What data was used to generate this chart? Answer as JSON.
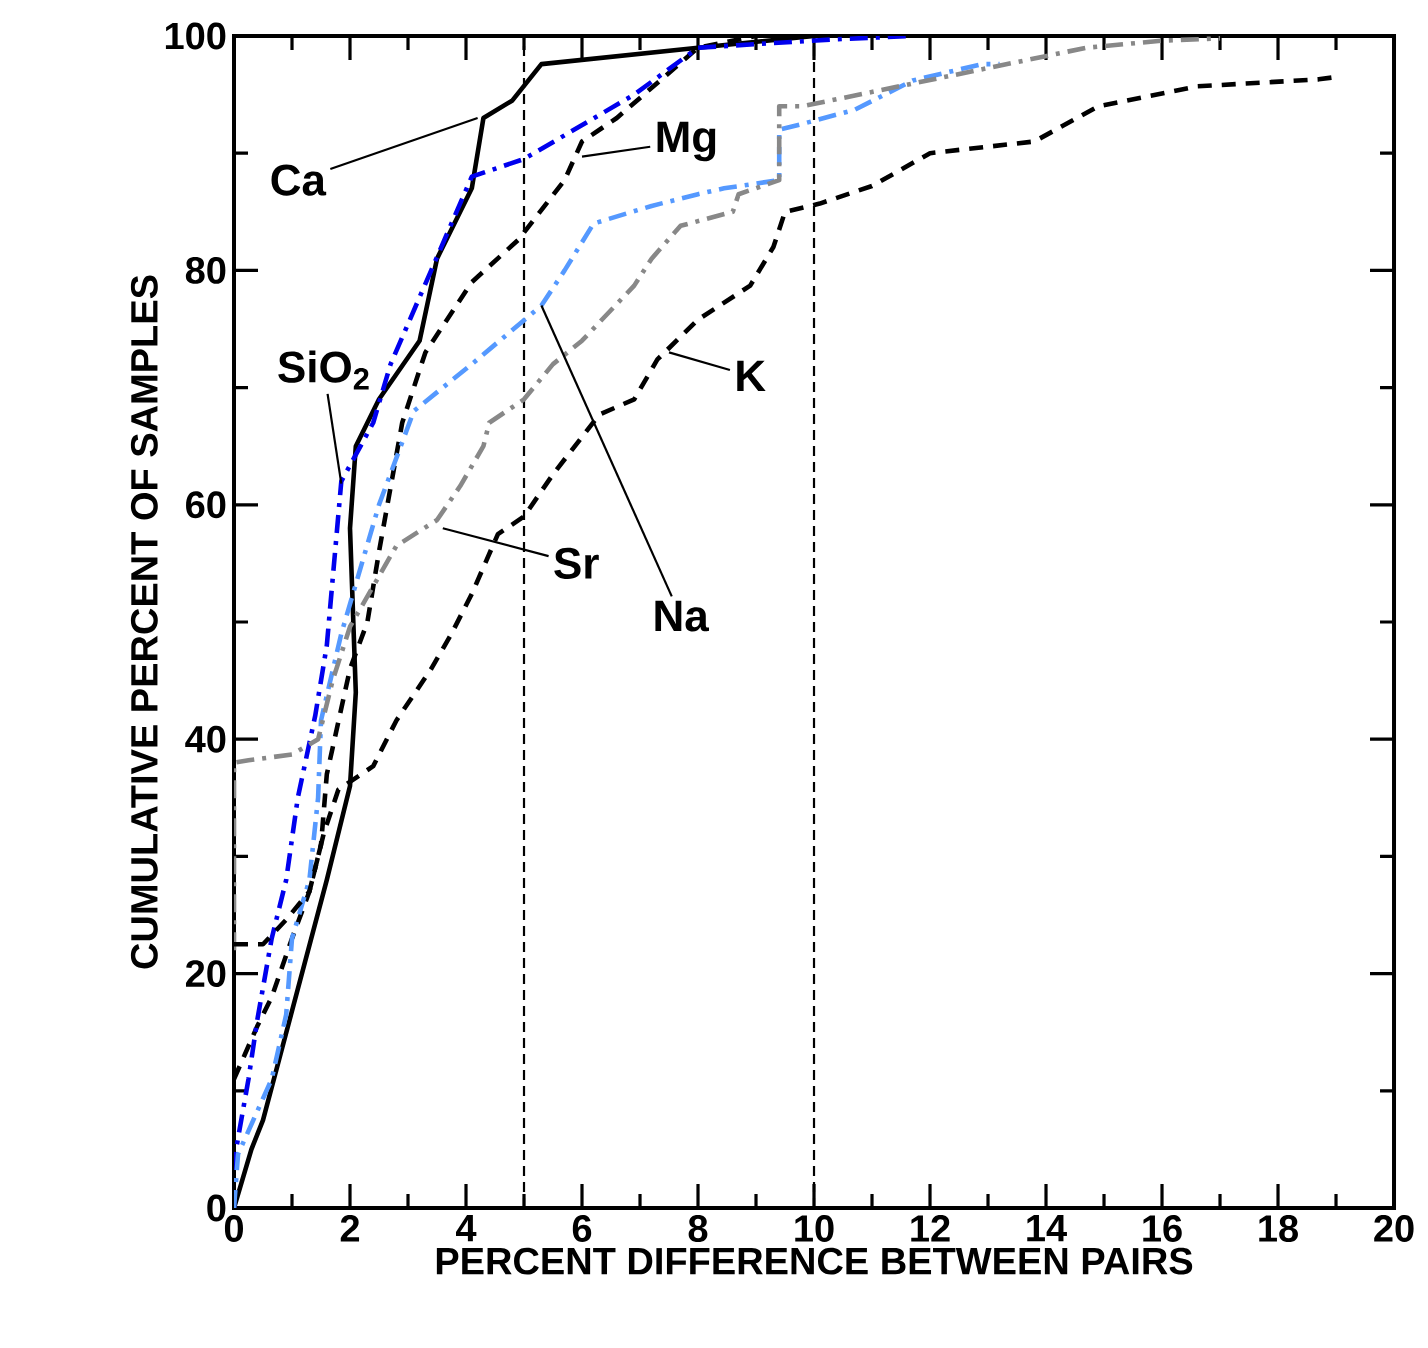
{
  "chart_data": {
    "type": "line",
    "xlabel": "PERCENT DIFFERENCE BETWEEN PAIRS",
    "ylabel": "CUMULATIVE PERCENT OF SAMPLES",
    "xlim": [
      0,
      20
    ],
    "ylim": [
      0,
      100
    ],
    "xticks": [
      0,
      2,
      4,
      6,
      8,
      10,
      12,
      14,
      16,
      18,
      20
    ],
    "yticks": [
      0,
      20,
      40,
      60,
      80,
      100
    ],
    "grid": false,
    "marker": "none",
    "series": [
      {
        "color": "#000000",
        "line_style": "solid",
        "x": [
          0,
          0.3,
          0.5,
          1.6,
          2.0,
          2.1,
          2.0,
          2.1,
          2.5,
          3.2,
          3.5,
          4.1,
          4.3,
          4.8,
          5.3,
          8,
          10
        ],
        "values": [
          0,
          5,
          7.5,
          28,
          36,
          44,
          58,
          65,
          69,
          74,
          81,
          87,
          93,
          94.5,
          97.6,
          99,
          100
        ]
      },
      {
        "color": "#000000",
        "line_style": "dashed",
        "x": [
          0,
          0.4,
          0.65,
          1,
          1.3,
          1.5,
          1.6,
          2,
          2.3,
          2.5,
          2.9,
          3.3,
          4.1,
          4.9,
          5.7,
          6,
          6.6,
          8,
          9
        ],
        "values": [
          11,
          15.5,
          18,
          23,
          27,
          31,
          37,
          46,
          50,
          56,
          67,
          73,
          79,
          82.6,
          87.7,
          91,
          93,
          99,
          100
        ]
      },
      {
        "color": "#0000ee",
        "line_style": "dashdot",
        "x": [
          0,
          0,
          0.25,
          0.4,
          0.65,
          0.9,
          1.1,
          1.4,
          1.6,
          1.85,
          2.4,
          2.7,
          3.4,
          4.1,
          5,
          6.9,
          8,
          10.3,
          11.7
        ],
        "values": [
          0,
          4,
          11,
          16,
          23,
          28,
          35,
          42,
          48,
          62,
          67,
          72,
          80,
          88,
          89.5,
          95,
          99,
          99.7,
          100
        ]
      },
      {
        "color": "#5599ff",
        "line_style": "dashdot",
        "x": [
          0,
          0.07,
          0.65,
          0.9,
          1,
          1.3,
          1.45,
          1.5,
          1.85,
          2.5,
          3.1,
          4.1,
          5.3,
          5.7,
          6.2,
          7.2,
          8,
          8.45,
          9.4,
          9.4,
          9.8,
          10.7,
          11.7,
          12.9,
          13.2
        ],
        "values": [
          0,
          4.6,
          11,
          16.5,
          23,
          28,
          35,
          41.6,
          49,
          60,
          68,
          72,
          77,
          80,
          84,
          85.5,
          86.5,
          87,
          87.7,
          92,
          92.5,
          93.7,
          96.2,
          97.6,
          97.6
        ]
      },
      {
        "color": "#888888",
        "line_style": "dashdot",
        "x": [
          0,
          0,
          0.25,
          1,
          1.45,
          1.7,
          2,
          2.8,
          3.5,
          3.9,
          4.3,
          4.4,
          5,
          5.5,
          6,
          6.9,
          7.2,
          7.7,
          8.6,
          8.7,
          9.4,
          9.4,
          9.8,
          14.7,
          16,
          17
        ],
        "values": [
          22,
          38,
          38.2,
          38.7,
          40,
          45,
          49.6,
          56.5,
          58.7,
          61.6,
          65,
          67,
          69,
          72,
          74,
          78.7,
          81,
          83.8,
          85,
          86.5,
          87.7,
          94,
          94,
          99,
          99.6,
          99.8
        ]
      },
      {
        "color": "#000000",
        "line_style": "dashed",
        "x": [
          0,
          0.5,
          0.9,
          1.3,
          1.55,
          1.8,
          2.4,
          2.8,
          3.4,
          3.75,
          4.1,
          4.55,
          5,
          5.5,
          6.3,
          6.9,
          7.3,
          8,
          8.9,
          9.3,
          9.5,
          10.1,
          11,
          12,
          13.8,
          14.9,
          16.6,
          18.7,
          19
        ],
        "values": [
          22.5,
          22.5,
          24.6,
          27,
          32,
          35.7,
          37.7,
          41.6,
          46,
          49,
          52.4,
          57.5,
          59,
          62.6,
          67.7,
          69,
          72.4,
          75.8,
          78.7,
          82,
          85,
          85.7,
          87.2,
          90,
          91,
          94,
          95.7,
          96.3,
          96.5
        ]
      }
    ],
    "ref_lines": [
      {
        "axis": "x",
        "value": 5,
        "line_style": "dashed",
        "color": "#000000"
      },
      {
        "axis": "x",
        "value": 10,
        "line_style": "dashed",
        "color": "#000000"
      }
    ],
    "annotations": [
      {
        "text": "Ca",
        "x": 4.2,
        "y": 93
      },
      {
        "text": "Mg",
        "x": 6.0,
        "y": 89.7
      },
      {
        "text": "SiO$_{2}$",
        "x": 1.85,
        "y": 61.8
      },
      {
        "text": "Na",
        "x": 5.3,
        "y": 77
      },
      {
        "text": "K",
        "x": 7.5,
        "y": 73
      },
      {
        "text": "Sr",
        "x": 3.6,
        "y": 58
      }
    ]
  }
}
